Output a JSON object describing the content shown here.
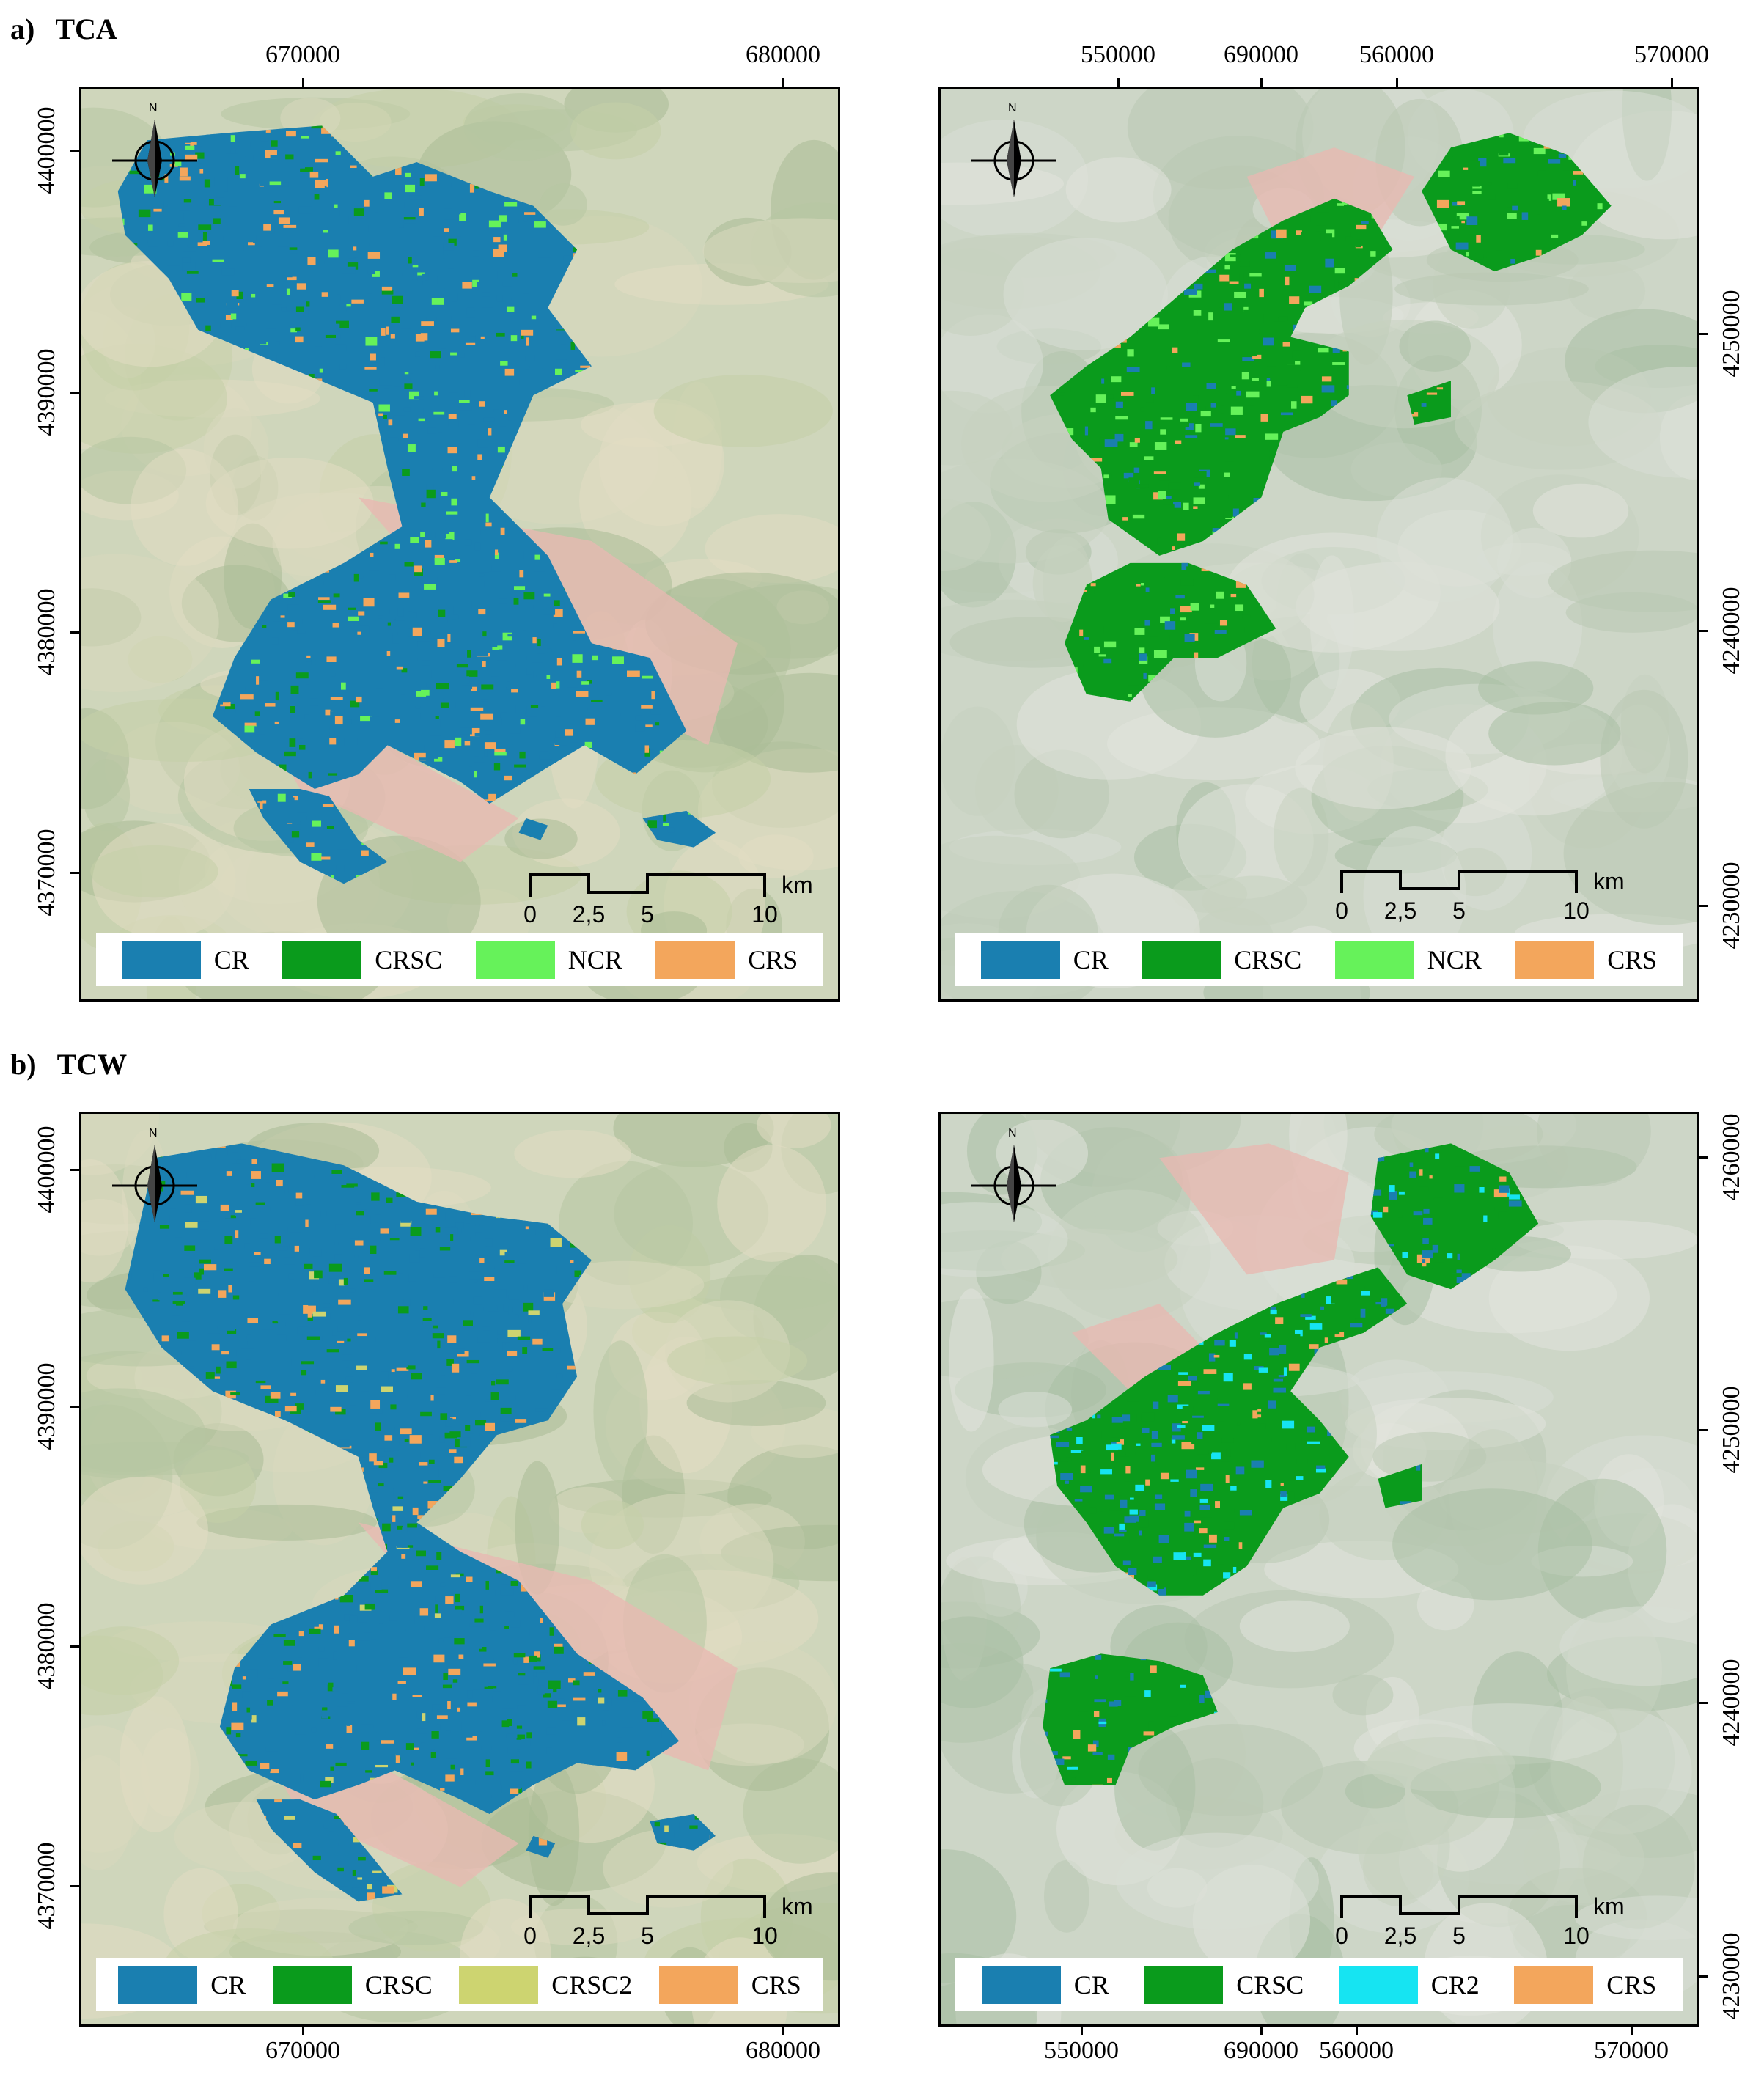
{
  "sections": {
    "a": {
      "letter": "a)",
      "title": "TCA"
    },
    "b": {
      "letter": "b)",
      "title": "TCW"
    }
  },
  "scalebar": {
    "labels": [
      "0",
      "2,5",
      "5",
      "10"
    ],
    "unit": "km"
  },
  "north_arrow": {
    "label": "N",
    "icon": "north-arrow-icon"
  },
  "panels": {
    "a_left": {
      "x_ticks": [
        "670000",
        "680000",
        "690000"
      ],
      "y_ticks": [
        "4400000",
        "4390000",
        "4380000",
        "4370000"
      ],
      "legend": [
        {
          "label": "CR",
          "color": "#1a7fb0"
        },
        {
          "label": "CRSC",
          "color": "#0a9b1c"
        },
        {
          "label": "NCR",
          "color": "#66f25a"
        },
        {
          "label": "CRS",
          "color": "#f3a65c"
        }
      ]
    },
    "a_right": {
      "x_ticks": [
        "550000",
        "560000",
        "570000"
      ],
      "y_ticks": [
        "4250000",
        "4240000",
        "4230000"
      ],
      "legend": [
        {
          "label": "CR",
          "color": "#1a7fb0"
        },
        {
          "label": "CRSC",
          "color": "#0a9b1c"
        },
        {
          "label": "NCR",
          "color": "#66f25a"
        },
        {
          "label": "CRS",
          "color": "#f3a65c"
        }
      ]
    },
    "b_left": {
      "x_ticks": [
        "670000",
        "680000",
        "690000"
      ],
      "y_ticks": [
        "4400000",
        "4390000",
        "4380000",
        "4370000"
      ],
      "legend": [
        {
          "label": "CR",
          "color": "#1a7fb0"
        },
        {
          "label": "CRSC",
          "color": "#0a9b1c"
        },
        {
          "label": "CRSC2",
          "color": "#cdd470"
        },
        {
          "label": "CRS",
          "color": "#f3a65c"
        }
      ]
    },
    "b_right": {
      "x_ticks": [
        "550000",
        "560000",
        "570000"
      ],
      "y_ticks": [
        "4260000",
        "4250000",
        "4240000",
        "4230000"
      ],
      "legend": [
        {
          "label": "CR",
          "color": "#1a7fb0"
        },
        {
          "label": "CRSC",
          "color": "#0a9b1c"
        },
        {
          "label": "CR2",
          "color": "#16e4f2"
        },
        {
          "label": "CRS",
          "color": "#f3a65c"
        }
      ]
    }
  }
}
